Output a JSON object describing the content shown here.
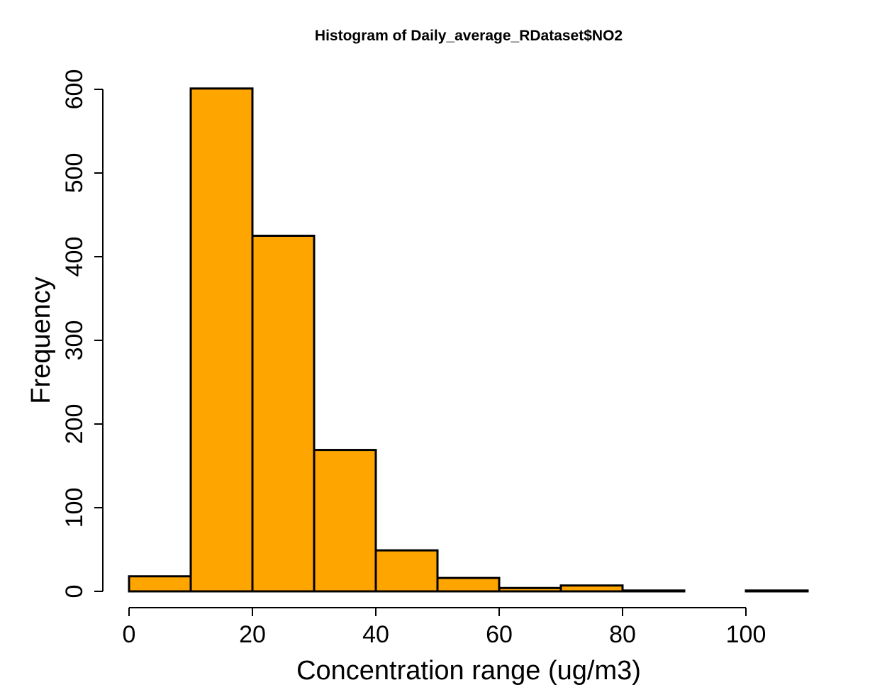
{
  "chart_data": {
    "type": "bar",
    "title": "Histogram of Daily_average_RDataset$NO2",
    "xlabel": "Concentration range (ug/m3)",
    "ylabel": "Frequency",
    "bin_edges": [
      0,
      10,
      20,
      30,
      40,
      50,
      60,
      70,
      80,
      90,
      100,
      110
    ],
    "values": [
      18,
      601,
      425,
      169,
      49,
      16,
      4,
      7,
      1,
      0,
      1
    ],
    "xlim": [
      0,
      110
    ],
    "ylim": [
      0,
      600
    ],
    "x_ticks": [
      0,
      20,
      40,
      60,
      80,
      100
    ],
    "y_ticks": [
      0,
      100,
      200,
      300,
      400,
      500,
      600
    ],
    "bar_color": "#FFA500",
    "edge_color": "#000000",
    "grid": false
  }
}
